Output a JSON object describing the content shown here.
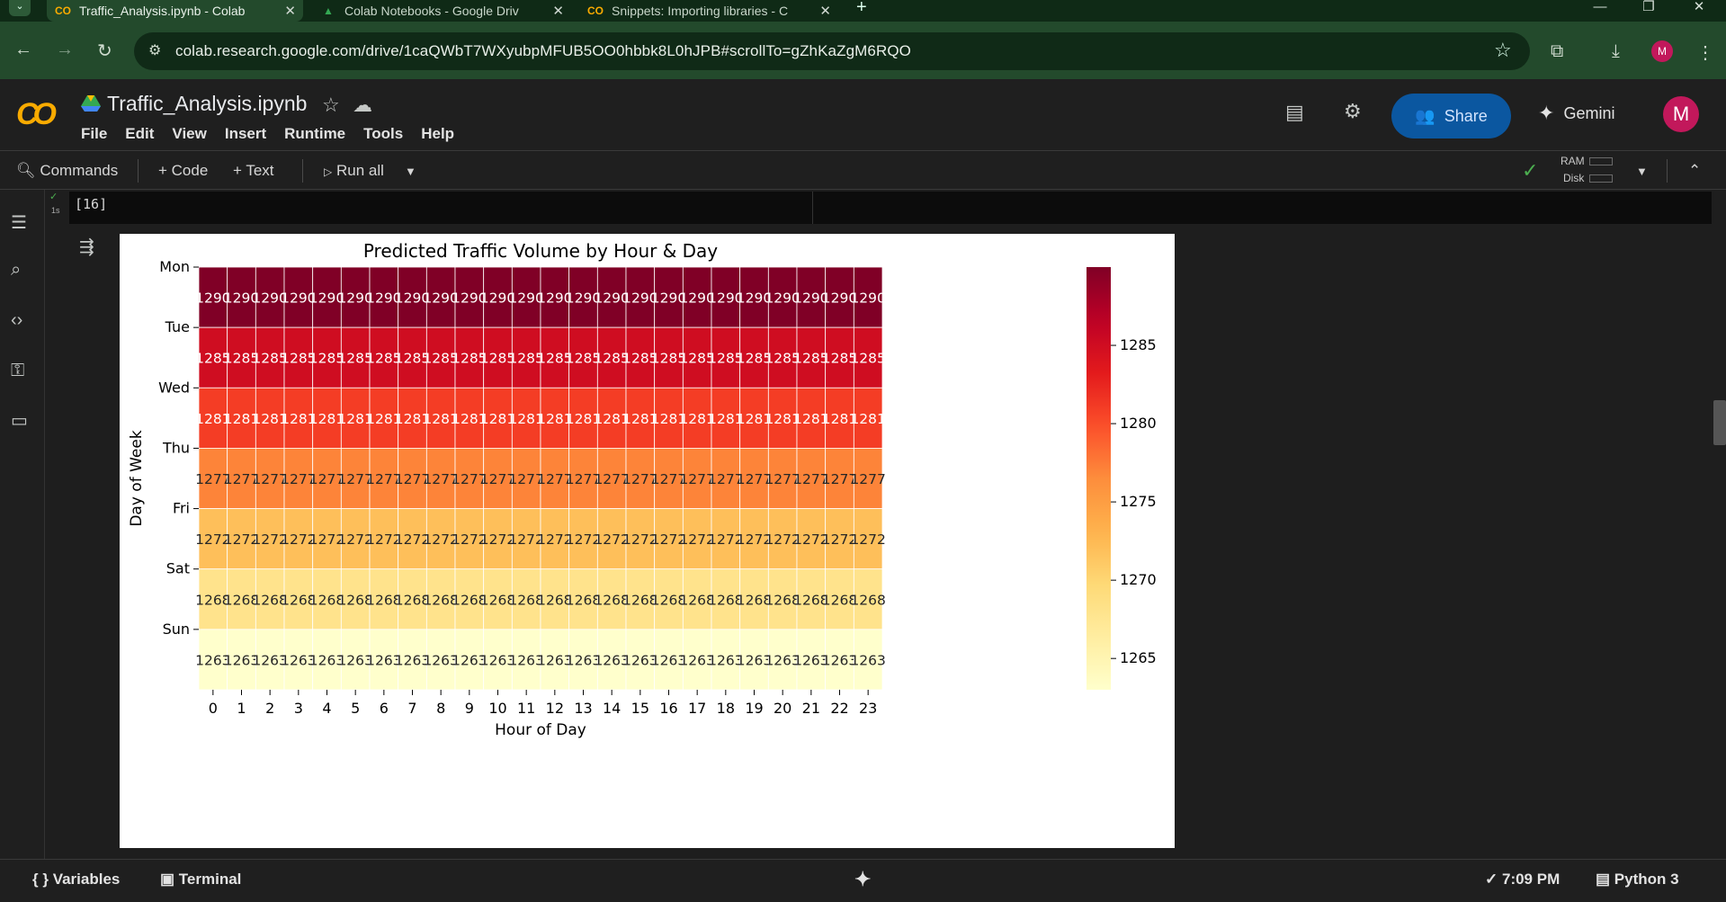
{
  "browser": {
    "tabs": [
      {
        "title": "Traffic_Analysis.ipynb - Colab",
        "active": true
      },
      {
        "title": "Colab Notebooks - Google Driv",
        "active": false
      },
      {
        "title": "Snippets: Importing libraries - C",
        "active": false
      }
    ],
    "new_tab": "+",
    "url": "colab.research.google.com/drive/1caQWbT7WXyubpMFUB5OO0hbbk8L0hJPB#scrollTo=gZhKaZgM6RQO",
    "profile_initial": "M"
  },
  "colab": {
    "logo": "CO",
    "notebook_title": "Traffic_Analysis.ipynb",
    "menu": [
      "File",
      "Edit",
      "View",
      "Insert",
      "Runtime",
      "Tools",
      "Help"
    ],
    "share_label": "Share",
    "gemini_label": "Gemini",
    "user_initial": "M"
  },
  "commands": {
    "commands_label": "Commands",
    "code_label": "+ Code",
    "text_label": "+ Text",
    "run_all_label": "Run all",
    "ram_label": "RAM",
    "disk_label": "Disk"
  },
  "cell": {
    "execution_count": "[16]",
    "run_time": "1s"
  },
  "status": {
    "variables_label": "Variables",
    "terminal_label": "Terminal",
    "time": "7:09 PM",
    "kernel": "Python 3"
  },
  "chart_data": {
    "type": "heatmap",
    "title": "Predicted Traffic Volume by Hour & Day",
    "xlabel": "Hour of Day",
    "ylabel": "Day of Week",
    "x": [
      "0",
      "1",
      "2",
      "3",
      "4",
      "5",
      "6",
      "7",
      "8",
      "9",
      "10",
      "11",
      "12",
      "13",
      "14",
      "15",
      "16",
      "17",
      "18",
      "19",
      "20",
      "21",
      "22",
      "23"
    ],
    "y": [
      "Mon",
      "Tue",
      "Wed",
      "Thu",
      "Fri",
      "Sat",
      "Sun"
    ],
    "row_values": [
      1290,
      1285,
      1281,
      1277,
      1272,
      1268,
      1263
    ],
    "colormap": "YlOrRd",
    "colorbar_ticks": [
      1285,
      1280,
      1275,
      1270,
      1265
    ],
    "colorbar_range": [
      1263,
      1290
    ],
    "annotated": true
  }
}
